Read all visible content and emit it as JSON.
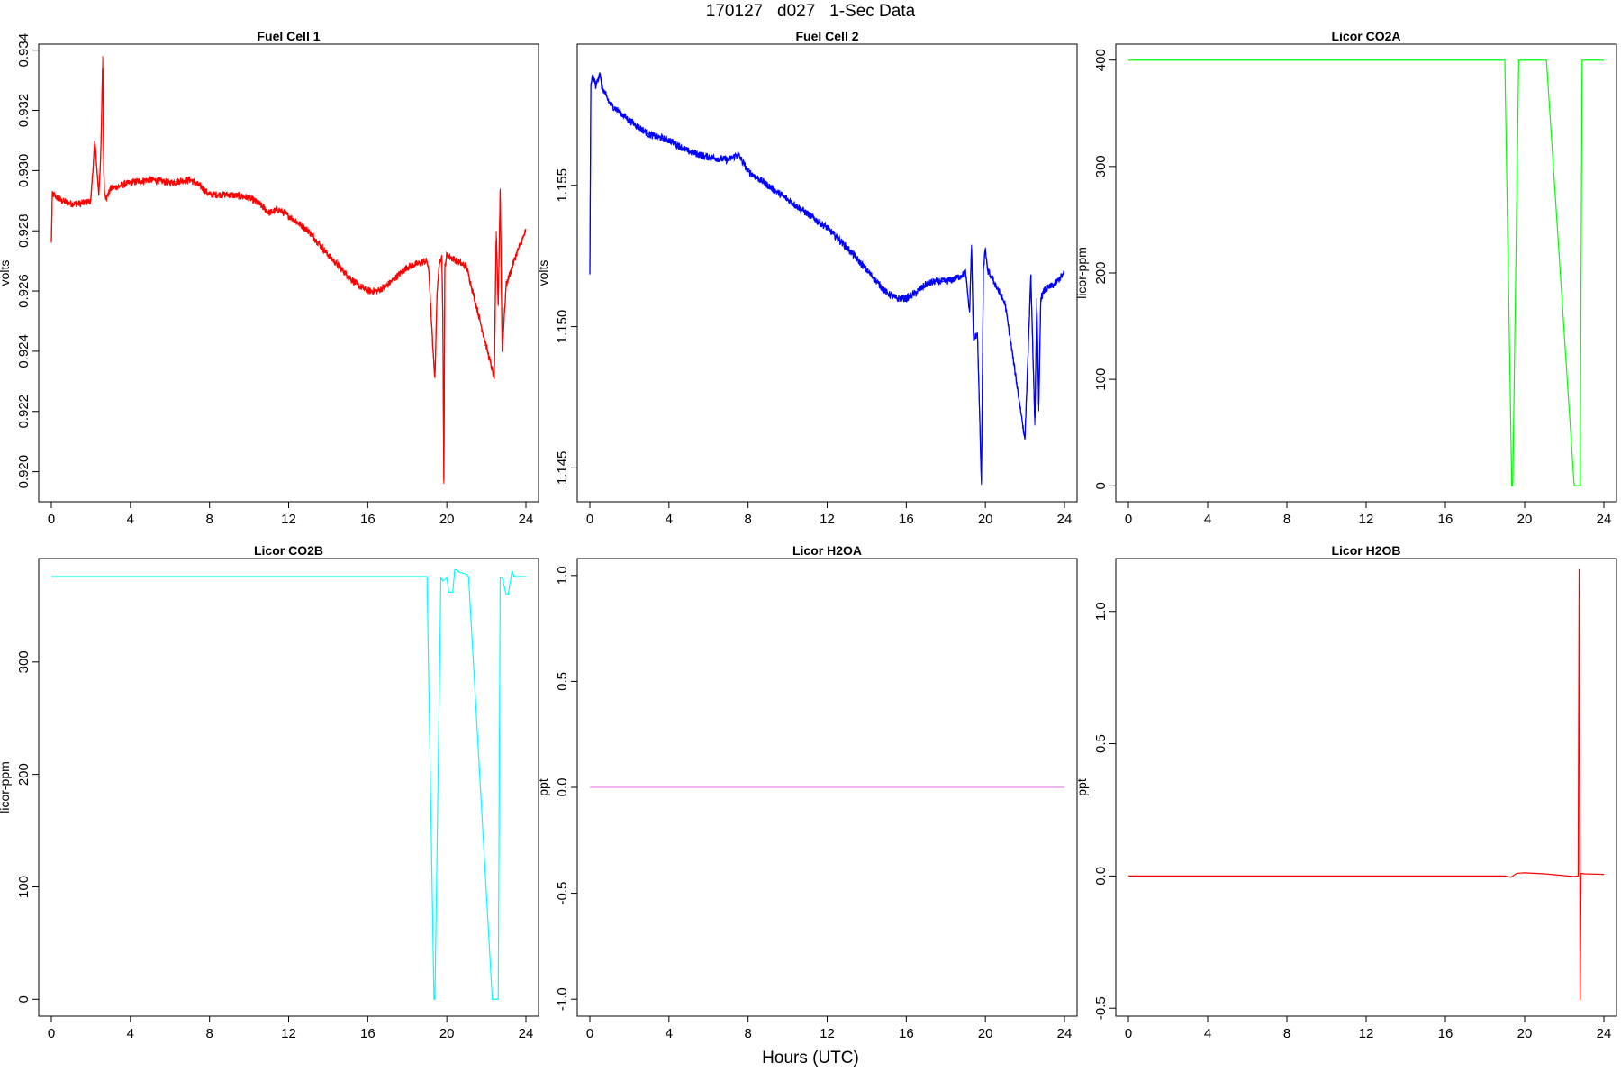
{
  "figure": {
    "title": "170127   d027   1-Sec Data",
    "xlabel": "Hours (UTC)"
  },
  "chart_data": [
    {
      "type": "line",
      "title": "Fuel Cell 1",
      "ylabel": "volts",
      "color": "#ff0000",
      "xlim": [
        0,
        24
      ],
      "ylim": [
        0.919,
        0.9342
      ],
      "x_ticks": [
        0,
        4,
        8,
        12,
        16,
        20,
        24
      ],
      "y_ticks": [
        0.92,
        0.922,
        0.924,
        0.926,
        0.928,
        0.93,
        0.932,
        0.934
      ],
      "y_tick_labels": [
        "0.920",
        "0.922",
        "0.924",
        "0.926",
        "0.928",
        "0.930",
        "0.932",
        "0.934"
      ],
      "y_tick_rotate": true,
      "noise": 0.00012,
      "x": [
        0,
        0.05,
        0.1,
        0.5,
        1.0,
        1.5,
        2.0,
        2.2,
        2.4,
        2.5,
        2.55,
        2.6,
        2.65,
        2.7,
        2.8,
        3.0,
        3.5,
        4,
        5,
        6,
        7,
        7.5,
        8,
        9,
        10,
        10.5,
        11,
        11.5,
        12,
        13,
        14,
        15,
        15.5,
        16,
        16.5,
        17,
        17.5,
        18,
        18.5,
        19,
        19.1,
        19.3,
        19.4,
        19.5,
        19.6,
        19.75,
        19.8,
        19.85,
        19.9,
        20.0,
        20.5,
        21,
        22.4,
        22.5,
        22.6,
        22.7,
        22.8,
        23.0,
        23.5,
        24.0
      ],
      "y": [
        0.9276,
        0.9292,
        0.9292,
        0.929,
        0.9289,
        0.9289,
        0.929,
        0.931,
        0.9292,
        0.9305,
        0.932,
        0.9338,
        0.93,
        0.9292,
        0.9291,
        0.9294,
        0.9295,
        0.9296,
        0.9297,
        0.9296,
        0.9297,
        0.9295,
        0.9292,
        0.9292,
        0.9291,
        0.9289,
        0.9286,
        0.9287,
        0.9285,
        0.928,
        0.9272,
        0.9265,
        0.9262,
        0.926,
        0.926,
        0.9262,
        0.9265,
        0.9268,
        0.9269,
        0.927,
        0.9266,
        0.924,
        0.9231,
        0.9258,
        0.9268,
        0.9272,
        0.925,
        0.9196,
        0.9268,
        0.9272,
        0.927,
        0.9268,
        0.9231,
        0.928,
        0.9255,
        0.9294,
        0.924,
        0.9262,
        0.9272,
        0.928
      ]
    },
    {
      "type": "line",
      "title": "Fuel Cell 2",
      "ylabel": "volts",
      "color": "#0000ff",
      "xlim": [
        0,
        24
      ],
      "ylim": [
        1.1438,
        1.16
      ],
      "x_ticks": [
        0,
        4,
        8,
        12,
        16,
        20,
        24
      ],
      "y_ticks": [
        1.145,
        1.15,
        1.155
      ],
      "y_tick_labels": [
        "1.145",
        "1.150",
        "1.155"
      ],
      "y_tick_rotate": true,
      "noise": 0.00013,
      "x": [
        0,
        0.05,
        0.1,
        0.2,
        0.3,
        0.5,
        0.6,
        1,
        2,
        3,
        4,
        5,
        6,
        7,
        7.5,
        8,
        9,
        10,
        11,
        12,
        13,
        14,
        15,
        15.5,
        16,
        16.5,
        17,
        17.5,
        18,
        18.5,
        19,
        19.2,
        19.3,
        19.4,
        19.6,
        19.8,
        19.9,
        20.0,
        20.1,
        20.5,
        21,
        22.0,
        22.3,
        22.5,
        22.6,
        22.7,
        22.8,
        23,
        23.5,
        24
      ],
      "y": [
        1.1519,
        1.1585,
        1.1588,
        1.1588,
        1.1585,
        1.159,
        1.1585,
        1.1579,
        1.1573,
        1.1568,
        1.1566,
        1.1562,
        1.156,
        1.1559,
        1.1561,
        1.1555,
        1.155,
        1.1545,
        1.154,
        1.1535,
        1.1528,
        1.152,
        1.1512,
        1.151,
        1.151,
        1.1512,
        1.1515,
        1.1516,
        1.1516,
        1.1517,
        1.1519,
        1.1505,
        1.1529,
        1.1495,
        1.1498,
        1.1444,
        1.152,
        1.1528,
        1.152,
        1.1515,
        1.1508,
        1.146,
        1.1518,
        1.1465,
        1.151,
        1.147,
        1.151,
        1.1513,
        1.1515,
        1.1519
      ]
    },
    {
      "type": "line",
      "title": "Licor CO2A",
      "ylabel": "licor-ppm",
      "color": "#00ff00",
      "xlim": [
        0,
        24
      ],
      "ylim": [
        -15,
        415
      ],
      "x_ticks": [
        0,
        4,
        8,
        12,
        16,
        20,
        24
      ],
      "y_ticks": [
        0,
        100,
        200,
        300,
        400
      ],
      "y_tick_labels": [
        "0",
        "100",
        "200",
        "300",
        "400"
      ],
      "y_tick_rotate": true,
      "noise": 0,
      "x": [
        0,
        19.0,
        19.35,
        19.4,
        19.7,
        19.8,
        21.1,
        22.5,
        22.6,
        22.8,
        22.9,
        24.0
      ],
      "y": [
        400,
        400,
        0,
        0,
        400,
        400,
        400,
        0,
        0,
        0,
        400,
        400
      ]
    },
    {
      "type": "line",
      "title": "Licor CO2B",
      "ylabel": "licor-ppm",
      "color": "#00ffff",
      "xlim": [
        0,
        24
      ],
      "ylim": [
        -15,
        392
      ],
      "x_ticks": [
        0,
        4,
        8,
        12,
        16,
        20,
        24
      ],
      "y_ticks": [
        0,
        100,
        200,
        300
      ],
      "y_tick_labels": [
        "0",
        "100",
        "200",
        "300"
      ],
      "y_tick_rotate": true,
      "noise": 0,
      "x": [
        0,
        19.0,
        19.35,
        19.4,
        19.7,
        19.8,
        20.0,
        20.1,
        20.3,
        20.4,
        20.5,
        20.6,
        21.0,
        21.1,
        22.3,
        22.4,
        22.6,
        22.7,
        22.8,
        23.0,
        23.1,
        23.3,
        23.4,
        23.6,
        24.0
      ],
      "y": [
        376,
        376,
        0,
        0,
        375,
        372,
        375,
        362,
        362,
        382,
        382,
        380,
        378,
        376,
        0,
        0,
        0,
        375,
        375,
        360,
        360,
        381,
        376,
        376,
        376
      ]
    },
    {
      "type": "line",
      "title": "Licor H2OA",
      "ylabel": "ppt",
      "color": "#ee82ee",
      "xlim": [
        0,
        24
      ],
      "ylim": [
        -1.08,
        1.08
      ],
      "x_ticks": [
        0,
        4,
        8,
        12,
        16,
        20,
        24
      ],
      "y_ticks": [
        -1.0,
        -0.5,
        0.0,
        0.5,
        1.0
      ],
      "y_tick_labels": [
        "-1.0",
        "-0.5",
        "0.0",
        "0.5",
        "1.0"
      ],
      "y_tick_rotate": true,
      "noise": 0,
      "x": [
        0,
        24
      ],
      "y": [
        0,
        0
      ]
    },
    {
      "type": "line",
      "title": "Licor H2OB",
      "ylabel": "ppt",
      "color": "#ff0000",
      "xlim": [
        0,
        24
      ],
      "ylim": [
        -0.53,
        1.2
      ],
      "x_ticks": [
        0,
        4,
        8,
        12,
        16,
        20,
        24
      ],
      "y_ticks": [
        -0.5,
        0.0,
        0.5,
        1.0
      ],
      "y_tick_labels": [
        "-0.5",
        "0.0",
        "0.5",
        "1.0"
      ],
      "y_tick_rotate": true,
      "noise": 0,
      "x": [
        0,
        19.0,
        19.3,
        19.6,
        20.0,
        21.0,
        22.5,
        22.7,
        22.75,
        22.8,
        22.85,
        23.0,
        24.0
      ],
      "y": [
        0.0,
        0.0,
        -0.005,
        0.01,
        0.012,
        0.008,
        -0.002,
        0.0,
        1.16,
        -0.47,
        0.01,
        0.008,
        0.006
      ]
    }
  ]
}
